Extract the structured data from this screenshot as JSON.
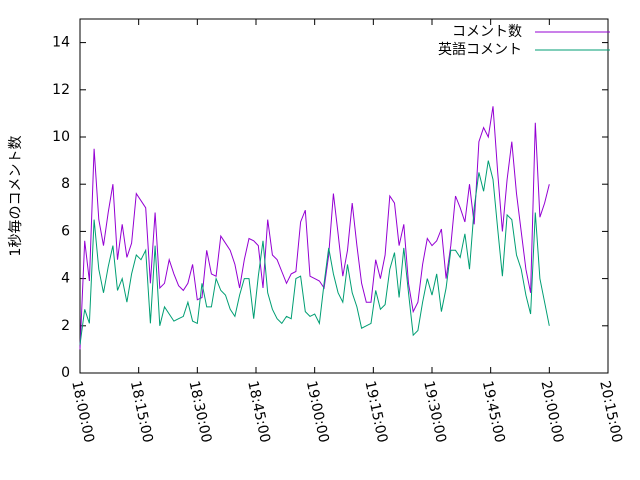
{
  "chart_data": {
    "type": "line",
    "ylabel": "1秒毎のコメント数",
    "x": [
      "18:00:00",
      "18:01:12",
      "18:02:24",
      "18:03:36",
      "18:04:48",
      "18:06:00",
      "18:07:12",
      "18:08:24",
      "18:09:36",
      "18:10:48",
      "18:12:00",
      "18:13:12",
      "18:14:24",
      "18:15:36",
      "18:16:48",
      "18:18:00",
      "18:19:12",
      "18:20:24",
      "18:21:36",
      "18:22:48",
      "18:24:00",
      "18:25:12",
      "18:26:24",
      "18:27:36",
      "18:28:48",
      "18:30:00",
      "18:31:12",
      "18:32:24",
      "18:33:36",
      "18:34:48",
      "18:36:00",
      "18:37:12",
      "18:38:24",
      "18:39:36",
      "18:40:48",
      "18:42:00",
      "18:43:12",
      "18:44:24",
      "18:45:36",
      "18:46:48",
      "18:48:00",
      "18:49:12",
      "18:50:24",
      "18:51:36",
      "18:52:48",
      "18:54:00",
      "18:55:12",
      "18:56:24",
      "18:57:36",
      "18:58:48",
      "19:00:00",
      "19:01:12",
      "19:02:24",
      "19:03:36",
      "19:04:48",
      "19:06:00",
      "19:07:12",
      "19:08:24",
      "19:09:36",
      "19:10:48",
      "19:12:00",
      "19:13:12",
      "19:14:24",
      "19:15:36",
      "19:16:48",
      "19:18:00",
      "19:19:12",
      "19:20:24",
      "19:21:36",
      "19:22:48",
      "19:24:00",
      "19:25:12",
      "19:26:24",
      "19:27:36",
      "19:28:48",
      "19:30:00",
      "19:31:12",
      "19:32:24",
      "19:33:36",
      "19:34:48",
      "19:36:00",
      "19:37:12",
      "19:38:24",
      "19:39:36",
      "19:40:48",
      "19:42:00",
      "19:43:12",
      "19:44:24",
      "19:45:36",
      "19:46:48",
      "19:48:00",
      "19:49:12",
      "19:50:24",
      "19:51:36",
      "19:52:48",
      "19:54:00",
      "19:55:12",
      "19:56:24",
      "19:57:36",
      "19:58:48",
      "20:00:00"
    ],
    "series": [
      {
        "name": "コメント数",
        "color": "#9400d3",
        "values": [
          1.0,
          5.6,
          3.9,
          9.5,
          6.5,
          5.4,
          6.8,
          8.0,
          4.8,
          6.3,
          4.9,
          5.5,
          7.6,
          7.3,
          7.0,
          3.8,
          6.8,
          3.6,
          3.8,
          4.8,
          4.2,
          3.7,
          3.5,
          3.8,
          4.6,
          3.1,
          3.2,
          5.2,
          4.2,
          4.1,
          5.8,
          5.5,
          5.2,
          4.6,
          3.6,
          4.8,
          5.7,
          5.6,
          5.4,
          3.6,
          6.5,
          5.0,
          4.8,
          4.3,
          3.8,
          4.2,
          4.3,
          6.4,
          6.9,
          4.1,
          4.0,
          3.9,
          3.6,
          5.0,
          7.6,
          5.9,
          4.1,
          5.2,
          7.2,
          5.4,
          3.8,
          3.0,
          3.0,
          4.8,
          4.0,
          5.0,
          7.5,
          7.2,
          5.4,
          6.3,
          3.8,
          2.6,
          3.0,
          4.6,
          5.7,
          5.4,
          5.6,
          6.1,
          4.0,
          5.4,
          7.5,
          7.0,
          6.4,
          8.0,
          6.3,
          9.8,
          10.4,
          10.0,
          11.3,
          8.5,
          6.0,
          8.2,
          9.8,
          7.6,
          6.0,
          4.4,
          3.4,
          10.6,
          6.6,
          7.2,
          8.0
        ]
      },
      {
        "name": "英語コメント",
        "color": "#009e73",
        "values": [
          1.2,
          2.7,
          2.1,
          6.5,
          4.4,
          3.4,
          4.5,
          5.4,
          3.5,
          4.0,
          3.0,
          4.2,
          5.0,
          4.8,
          5.2,
          2.1,
          5.4,
          2.0,
          2.8,
          2.5,
          2.2,
          2.3,
          2.4,
          3.0,
          2.2,
          2.1,
          3.8,
          2.8,
          2.8,
          4.0,
          3.5,
          3.3,
          2.7,
          2.4,
          3.3,
          4.0,
          4.0,
          2.3,
          4.1,
          5.6,
          3.4,
          2.7,
          2.3,
          2.1,
          2.4,
          2.3,
          4.0,
          4.1,
          2.6,
          2.4,
          2.5,
          2.1,
          3.8,
          5.3,
          4.2,
          3.4,
          3.0,
          4.6,
          3.4,
          2.8,
          1.9,
          2.0,
          2.1,
          3.5,
          2.7,
          2.9,
          4.4,
          5.1,
          3.2,
          5.3,
          3.4,
          1.6,
          1.8,
          3.0,
          4.0,
          3.3,
          4.2,
          2.6,
          3.6,
          5.2,
          5.2,
          4.9,
          5.9,
          4.4,
          7.0,
          8.5,
          7.7,
          9.0,
          8.2,
          6.1,
          4.1,
          6.7,
          6.5,
          5.0,
          4.4,
          3.3,
          2.5,
          6.8,
          4.0,
          3.0,
          2.0
        ]
      }
    ],
    "xlim": [
      "18:00:00",
      "20:15:00"
    ],
    "xticks": [
      "18:00:00",
      "18:15:00",
      "18:30:00",
      "18:45:00",
      "19:00:00",
      "19:15:00",
      "19:30:00",
      "19:45:00",
      "20:00:00",
      "20:15:00"
    ],
    "ylim": [
      0,
      15
    ],
    "yticks": [
      0,
      2,
      4,
      6,
      8,
      10,
      12,
      14
    ],
    "legend": "top-right"
  }
}
